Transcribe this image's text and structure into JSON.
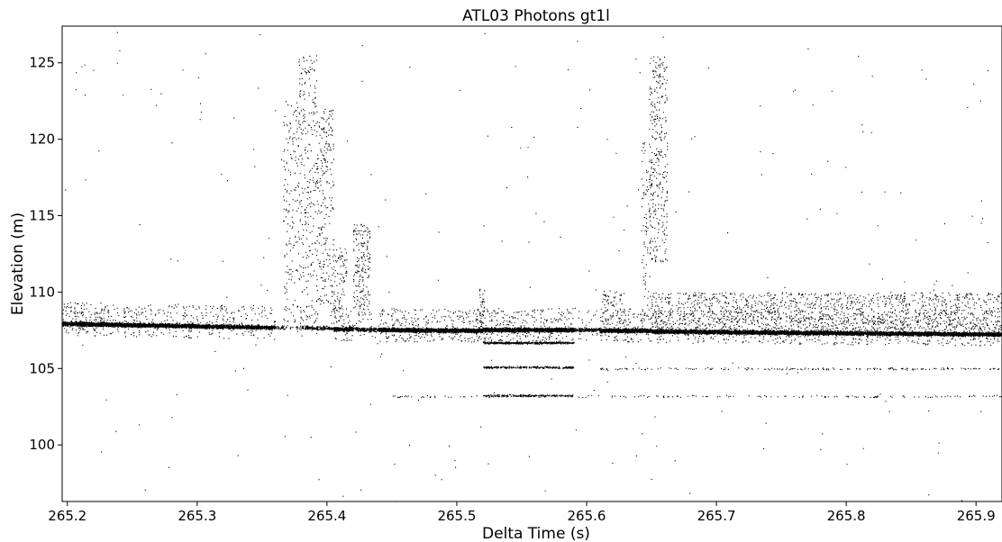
{
  "chart_data": {
    "type": "scatter",
    "title": "ATL03 Photons gt1l",
    "xlabel": "Delta Time (s)",
    "ylabel": "Elevation (m)",
    "xlim": [
      265.196,
      265.92
    ],
    "ylim": [
      96.3,
      127.4
    ],
    "x_ticks": [
      265.2,
      265.3,
      265.4,
      265.5,
      265.6,
      265.7,
      265.8,
      265.9
    ],
    "x_tick_labels": [
      "265.2",
      "265.3",
      "265.4",
      "265.5",
      "265.6",
      "265.7",
      "265.8",
      "265.9"
    ],
    "y_ticks": [
      100,
      105,
      110,
      115,
      120,
      125
    ],
    "y_tick_labels": [
      "100",
      "105",
      "110",
      "115",
      "120",
      "125"
    ],
    "grid": false,
    "legend": "none",
    "marker_color": "#000000",
    "series": [
      {
        "kind": "ground-surface",
        "segments": [
          {
            "x0": 265.196,
            "y0": 107.95,
            "x1": 265.26,
            "y1": 107.85,
            "density": 1.0
          },
          {
            "x0": 265.26,
            "y0": 107.85,
            "x1": 265.36,
            "y1": 107.7,
            "density": 0.7
          },
          {
            "x0": 265.36,
            "y0": 107.7,
            "x1": 265.38,
            "y1": 107.7,
            "density": 0.08
          },
          {
            "x0": 265.38,
            "y0": 107.7,
            "x1": 265.405,
            "y1": 107.65,
            "density": 0.25
          },
          {
            "x0": 265.405,
            "y0": 107.6,
            "x1": 265.42,
            "y1": 107.6,
            "density": 0.8
          },
          {
            "x0": 265.42,
            "y0": 107.6,
            "x1": 265.44,
            "y1": 107.55,
            "density": 0.3
          },
          {
            "x0": 265.44,
            "y0": 107.55,
            "x1": 265.52,
            "y1": 107.5,
            "density": 1.0
          },
          {
            "x0": 265.52,
            "y0": 107.55,
            "x1": 265.59,
            "y1": 107.55,
            "density": 1.0
          },
          {
            "x0": 265.59,
            "y0": 107.55,
            "x1": 265.61,
            "y1": 107.55,
            "density": 0.3
          },
          {
            "x0": 265.61,
            "y0": 107.5,
            "x1": 265.65,
            "y1": 107.5,
            "density": 0.9
          },
          {
            "x0": 265.65,
            "y0": 107.45,
            "x1": 265.92,
            "y1": 107.25,
            "density": 0.85
          }
        ]
      },
      {
        "kind": "vertical-plumes",
        "regions": [
          {
            "x0": 265.366,
            "x1": 265.378,
            "y0": 108,
            "y1": 122.5,
            "count": 160
          },
          {
            "x0": 265.378,
            "x1": 265.392,
            "y0": 108,
            "y1": 125.5,
            "count": 260
          },
          {
            "x0": 265.392,
            "x1": 265.405,
            "y0": 109,
            "y1": 122,
            "count": 240
          },
          {
            "x0": 265.405,
            "x1": 265.415,
            "y0": 107.8,
            "y1": 113,
            "count": 90
          },
          {
            "x0": 265.42,
            "x1": 265.433,
            "y0": 108.5,
            "y1": 114.5,
            "count": 180
          },
          {
            "x0": 265.517,
            "x1": 265.521,
            "y0": 107.6,
            "y1": 110.5,
            "count": 40
          },
          {
            "x0": 265.612,
            "x1": 265.63,
            "y0": 107.6,
            "y1": 110.2,
            "count": 70
          },
          {
            "x0": 265.642,
            "x1": 265.65,
            "y0": 107.8,
            "y1": 120,
            "count": 90
          },
          {
            "x0": 265.648,
            "x1": 265.662,
            "y0": 112,
            "y1": 125.5,
            "count": 300
          },
          {
            "x0": 265.65,
            "x1": 265.92,
            "y0": 107.5,
            "y1": 110,
            "count": 1300
          }
        ]
      },
      {
        "kind": "sub-surface-bands",
        "bands": [
          {
            "x0": 265.52,
            "x1": 265.59,
            "y": 106.7,
            "count": 500
          },
          {
            "x0": 265.52,
            "x1": 265.59,
            "y": 105.1,
            "count": 260
          },
          {
            "x0": 265.52,
            "x1": 265.59,
            "y": 103.25,
            "count": 200
          },
          {
            "x0": 265.61,
            "x1": 265.92,
            "y": 105.0,
            "count": 180
          },
          {
            "x0": 265.45,
            "x1": 265.92,
            "y": 103.2,
            "count": 170
          }
        ]
      },
      {
        "kind": "background-noise",
        "x0": 265.196,
        "x1": 265.92,
        "y0": 96.3,
        "y1": 127.4,
        "count": 260
      }
    ]
  }
}
